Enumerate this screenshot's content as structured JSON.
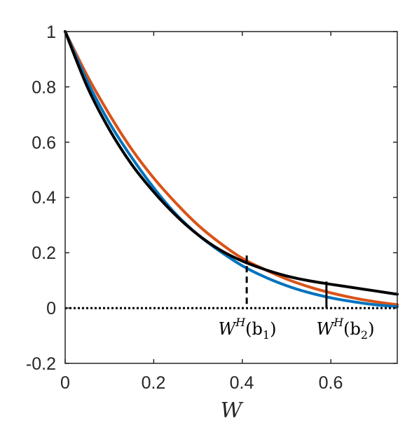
{
  "chart_data": {
    "type": "line",
    "title": "",
    "xlabel": "W",
    "ylabel": "",
    "xlim": [
      0,
      0.75
    ],
    "ylim": [
      -0.2,
      1
    ],
    "x_ticks": [
      "0",
      "0.2",
      "0.4",
      "0.6"
    ],
    "x_tick_values": [
      0,
      0.2,
      0.4,
      0.6
    ],
    "y_ticks": [
      "-0.2",
      "0",
      "0.2",
      "0.4",
      "0.6",
      "0.8",
      "1"
    ],
    "y_tick_values": [
      -0.2,
      0,
      0.2,
      0.4,
      0.6,
      0.8,
      1
    ],
    "grid": false,
    "legend": null,
    "series": [
      {
        "color": "#D95319",
        "x": [
          0,
          0.05,
          0.1,
          0.15,
          0.2,
          0.25,
          0.3,
          0.35,
          0.4,
          0.45,
          0.5,
          0.55,
          0.6,
          0.65,
          0.7,
          0.75
        ],
        "y": [
          1,
          0.84,
          0.7,
          0.575,
          0.47,
          0.38,
          0.3,
          0.235,
          0.18,
          0.14,
          0.105,
          0.077,
          0.055,
          0.037,
          0.023,
          0.012
        ]
      },
      {
        "color": "#0072BD",
        "x": [
          0,
          0.05,
          0.1,
          0.15,
          0.2,
          0.25,
          0.3,
          0.35,
          0.4,
          0.45,
          0.5,
          0.55,
          0.6,
          0.65,
          0.7,
          0.75
        ],
        "y": [
          1,
          0.82,
          0.67,
          0.545,
          0.435,
          0.34,
          0.265,
          0.205,
          0.153,
          0.113,
          0.081,
          0.056,
          0.037,
          0.023,
          0.012,
          0.005
        ]
      },
      {
        "color": "#000000",
        "x": [
          0,
          0.05,
          0.1,
          0.15,
          0.2,
          0.25,
          0.3,
          0.35,
          0.4,
          0.45,
          0.5,
          0.55,
          0.6,
          0.65,
          0.7,
          0.75
        ],
        "y": [
          1,
          0.8,
          0.645,
          0.52,
          0.42,
          0.335,
          0.265,
          0.21,
          0.17,
          0.14,
          0.116,
          0.099,
          0.086,
          0.074,
          0.062,
          0.05
        ]
      },
      {
        "style": "dotted",
        "color": "#000000",
        "x": [
          0,
          0.75
        ],
        "y": [
          0,
          0
        ]
      }
    ],
    "annotations": [
      {
        "base": "W",
        "sup": "H",
        "arg": "(b",
        "sub": "1",
        "close": ")",
        "x": 0.41,
        "y_top": 0.19,
        "style": "dashed"
      },
      {
        "base": "W",
        "sup": "H",
        "arg": "(b",
        "sub": "2",
        "close": ")",
        "x": 0.59,
        "y_top": 0.096,
        "style": "solid"
      }
    ]
  }
}
